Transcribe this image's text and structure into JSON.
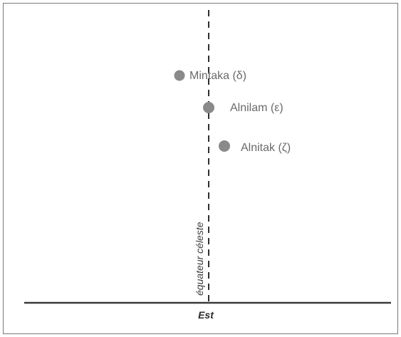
{
  "diagram": {
    "stars": [
      {
        "label": "Mintaka (δ)"
      },
      {
        "label": "Alnilam (ε)"
      },
      {
        "label": "Alnitak (ζ)"
      }
    ],
    "equator_label": "équateur céleste",
    "horizon_label": "Est",
    "colors": {
      "star": "#8a8a8a",
      "equator_line": "#2f2f2f",
      "horizon_line": "#3a3a3a",
      "frame": "#7a7a7a"
    }
  }
}
